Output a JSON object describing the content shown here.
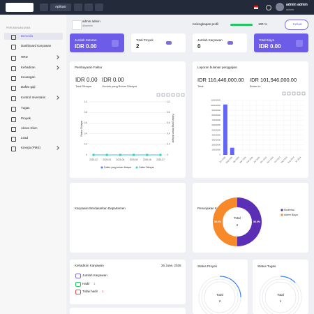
{
  "topbar": {
    "app_button": "Aplikasi",
    "user_name": "admin admin",
    "user_role": "admin"
  },
  "sidebar": {
    "section": "PERUSAHAAN ANDA",
    "items": [
      "Beranda",
      "Dashboard Karyawan",
      "HRD",
      "Kehadiran",
      "Keuangan",
      "Daftar gaji",
      "Kontrol Inventaris",
      "Tugas",
      "Proyek",
      "Akses Klien",
      "Lead",
      "Kinerja (PMS)"
    ]
  },
  "profile": {
    "name": "admin admin",
    "handle": "@admin",
    "completeness_title": "Kelengkapan profil",
    "completeness": {
      "value": 100,
      "label": "100 %"
    },
    "logout": "Keluar"
  },
  "cards": [
    {
      "label": "Jumlah Setoran",
      "value": "IDR 0.00"
    },
    {
      "label": "Total Proyek",
      "value": "2"
    },
    {
      "label": "Jumlah Karyawan",
      "value": "0"
    },
    {
      "label": "Total Biaya",
      "value": "IDR 0.00"
    }
  ],
  "chart_data": [
    {
      "type": "line",
      "title": "Pembayaran Faktur",
      "stats": [
        {
          "value": "IDR 0.00",
          "label": "Total Dibayar"
        },
        {
          "value": "IDR 0.00",
          "label": "Jumlah yang Belum Dibayar"
        }
      ],
      "y_label": "Faktur Dibayar",
      "y2_label": "Faktur yang belum dibayar",
      "x": [
        "2025-02",
        "2025-03",
        "2025-04",
        "2025-05",
        "2025-06",
        "2025-07"
      ],
      "series": [
        {
          "name": "Faktur yang belum dibayar",
          "color": "#3b82f6",
          "values": [
            0,
            0,
            0,
            0,
            0,
            0
          ]
        },
        {
          "name": "Faktur Dibayar",
          "color": "#2dd4bf",
          "axis": "y2",
          "values": [
            0,
            0,
            0,
            0,
            0,
            0
          ]
        }
      ],
      "ylim": [
        0,
        1
      ],
      "yticks": [
        0,
        0.2,
        0.4,
        0.6,
        0.8,
        {
          "value": 1,
          "label": "1.0"
        }
      ],
      "y2lim": [
        0,
        1
      ],
      "y2ticks": [
        0,
        0.2,
        0.4,
        0.6,
        0.8,
        {
          "value": 1,
          "label": "1.0"
        }
      ],
      "grid": true
    },
    {
      "type": "bar",
      "title": "Laporan bulanan penggajian",
      "stats": [
        {
          "value": "IDR 116,446,000.00",
          "label": "Total"
        },
        {
          "value": "IDR 101,946,000.00",
          "label": "Bulan ini"
        }
      ],
      "categories": [
        "Jun 2025",
        "May 2025",
        "Apr 2025",
        "Mar 2025",
        "Feb 2025",
        "Jan 2025",
        "Dec 2024",
        "Nov 2024",
        "Oct 2024",
        "Sep 2024",
        "Aug 2024",
        "Jul 2024"
      ],
      "values": [
        101946000,
        14500000,
        0,
        0,
        0,
        0,
        0,
        0,
        0,
        0,
        0,
        0
      ],
      "color": "#6366f1",
      "ylim": [
        0,
        110000000
      ],
      "yticks": [
        0,
        10000000,
        20000000,
        30000000,
        40000000,
        50000000,
        60000000,
        70000000,
        80000000,
        90000000,
        100000000,
        110000000
      ],
      "grid": true
    },
    {
      "type": "pie",
      "title": "Penunjukan Karyawan",
      "center_label": "Total",
      "total": 2,
      "categories": [
        "Eksternal",
        "Admin Biaya"
      ],
      "values": [
        50,
        50
      ],
      "value_labels": [
        "50.0%",
        "50.0%"
      ],
      "colors": [
        "#5b2fb5",
        "#f7892b"
      ]
    }
  ],
  "departments_title": "Karyawan Berdasarkan Departemen",
  "attendance": {
    "title": "Kehadiran Karyawan",
    "date": "26 June, 2025",
    "total_label": "Jumlah Karyawan",
    "present_label": "Hadir",
    "present": 1,
    "absent_label": "Tidak hadir",
    "absent": 1
  },
  "status": [
    {
      "title": "Status Proyek",
      "center_label": "Total",
      "total": 2
    },
    {
      "title": "Status Tugas",
      "center_label": "Total",
      "total": 1
    }
  ]
}
